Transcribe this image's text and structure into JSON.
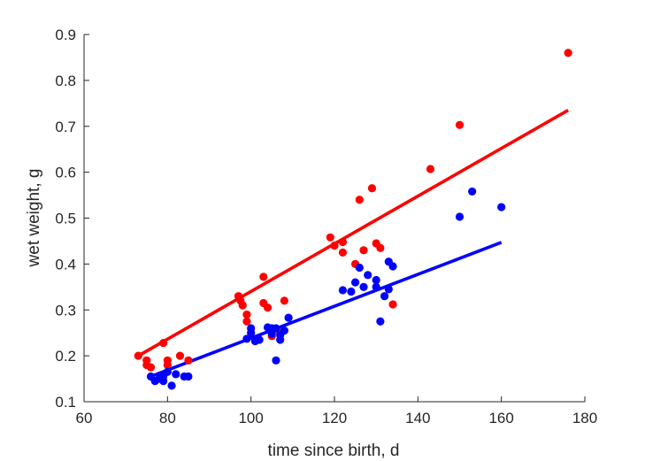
{
  "chart_data": {
    "type": "scatter",
    "xlabel": "time since birth, d",
    "ylabel": "wet weight, g",
    "xlim": [
      60,
      180
    ],
    "ylim": [
      0.1,
      0.9
    ],
    "xticks": [
      "60",
      "80",
      "100",
      "120",
      "140",
      "160",
      "180"
    ],
    "yticks": [
      "0.1",
      "0.2",
      "0.3",
      "0.4",
      "0.5",
      "0.6",
      "0.7",
      "0.8",
      "0.9"
    ],
    "grid": false,
    "colors": {
      "red": "#ff0000",
      "blue": "#0000ff",
      "axis": "#262626"
    },
    "series": [
      {
        "color": "#ff0000",
        "points": [
          [
            73,
            0.2
          ],
          [
            75,
            0.19
          ],
          [
            75,
            0.18
          ],
          [
            76,
            0.175
          ],
          [
            79,
            0.228
          ],
          [
            80,
            0.19
          ],
          [
            80,
            0.18
          ],
          [
            83,
            0.2
          ],
          [
            85,
            0.19
          ],
          [
            97,
            0.33
          ],
          [
            97.5,
            0.32
          ],
          [
            98,
            0.31
          ],
          [
            99,
            0.29
          ],
          [
            99,
            0.275
          ],
          [
            103,
            0.372
          ],
          [
            103,
            0.315
          ],
          [
            104,
            0.305
          ],
          [
            105,
            0.243
          ],
          [
            107,
            0.25
          ],
          [
            108,
            0.32
          ],
          [
            119,
            0.458
          ],
          [
            120,
            0.44
          ],
          [
            122,
            0.448
          ],
          [
            122,
            0.425
          ],
          [
            125,
            0.4
          ],
          [
            126,
            0.54
          ],
          [
            127,
            0.43
          ],
          [
            129,
            0.565
          ],
          [
            130,
            0.445
          ],
          [
            131,
            0.435
          ],
          [
            134,
            0.312
          ],
          [
            143,
            0.607
          ],
          [
            150,
            0.703
          ],
          [
            176,
            0.86
          ]
        ],
        "fit": [
          [
            73,
            0.2
          ],
          [
            176,
            0.735
          ]
        ]
      },
      {
        "color": "#0000ff",
        "points": [
          [
            76,
            0.155
          ],
          [
            77,
            0.145
          ],
          [
            78,
            0.15
          ],
          [
            79,
            0.155
          ],
          [
            79,
            0.145
          ],
          [
            80,
            0.165
          ],
          [
            81,
            0.135
          ],
          [
            82,
            0.16
          ],
          [
            84,
            0.155
          ],
          [
            85,
            0.155
          ],
          [
            99,
            0.237
          ],
          [
            100,
            0.26
          ],
          [
            100,
            0.25
          ],
          [
            101,
            0.232
          ],
          [
            102,
            0.235
          ],
          [
            104,
            0.262
          ],
          [
            105,
            0.26
          ],
          [
            105,
            0.248
          ],
          [
            106,
            0.19
          ],
          [
            106,
            0.26
          ],
          [
            107,
            0.245
          ],
          [
            107,
            0.235
          ],
          [
            108,
            0.255
          ],
          [
            109,
            0.283
          ],
          [
            122,
            0.343
          ],
          [
            124,
            0.34
          ],
          [
            125,
            0.36
          ],
          [
            126,
            0.392
          ],
          [
            127,
            0.35
          ],
          [
            128,
            0.376
          ],
          [
            130,
            0.365
          ],
          [
            130,
            0.35
          ],
          [
            131,
            0.275
          ],
          [
            132,
            0.33
          ],
          [
            133,
            0.405
          ],
          [
            133,
            0.345
          ],
          [
            134,
            0.395
          ],
          [
            150,
            0.503
          ],
          [
            153,
            0.558
          ],
          [
            160,
            0.524
          ]
        ],
        "fit": [
          [
            76,
            0.155
          ],
          [
            160,
            0.447
          ]
        ]
      }
    ]
  }
}
